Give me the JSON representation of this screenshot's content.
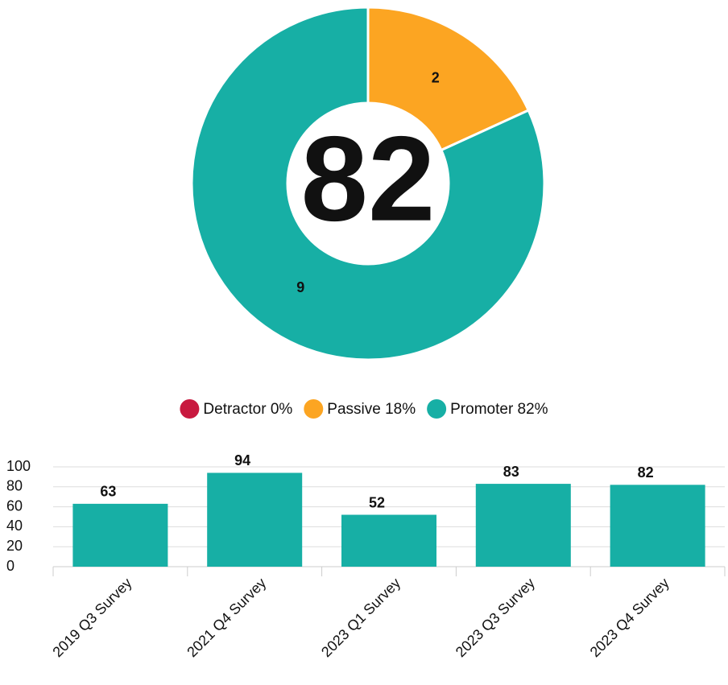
{
  "chart_data": [
    {
      "type": "pie",
      "categories": [
        "Detractor 0%",
        "Passive 18%",
        "Promoter 82%"
      ],
      "values": [
        0,
        2,
        9
      ],
      "colors": [
        "#c8193f",
        "#fca522",
        "#17afa5"
      ],
      "center_value": 82,
      "legend": "bottom"
    },
    {
      "type": "bar",
      "categories": [
        "2019 Q3 Survey",
        "2021 Q4 Survey",
        "2023 Q1 Survey",
        "2023 Q3 Survey",
        "2023 Q4 Survey"
      ],
      "values": [
        63,
        94,
        52,
        83,
        82
      ],
      "color": "#17afa5",
      "ylim": [
        0,
        100
      ],
      "yticks": [
        0,
        20,
        40,
        60,
        80,
        100
      ],
      "grid": true
    }
  ]
}
